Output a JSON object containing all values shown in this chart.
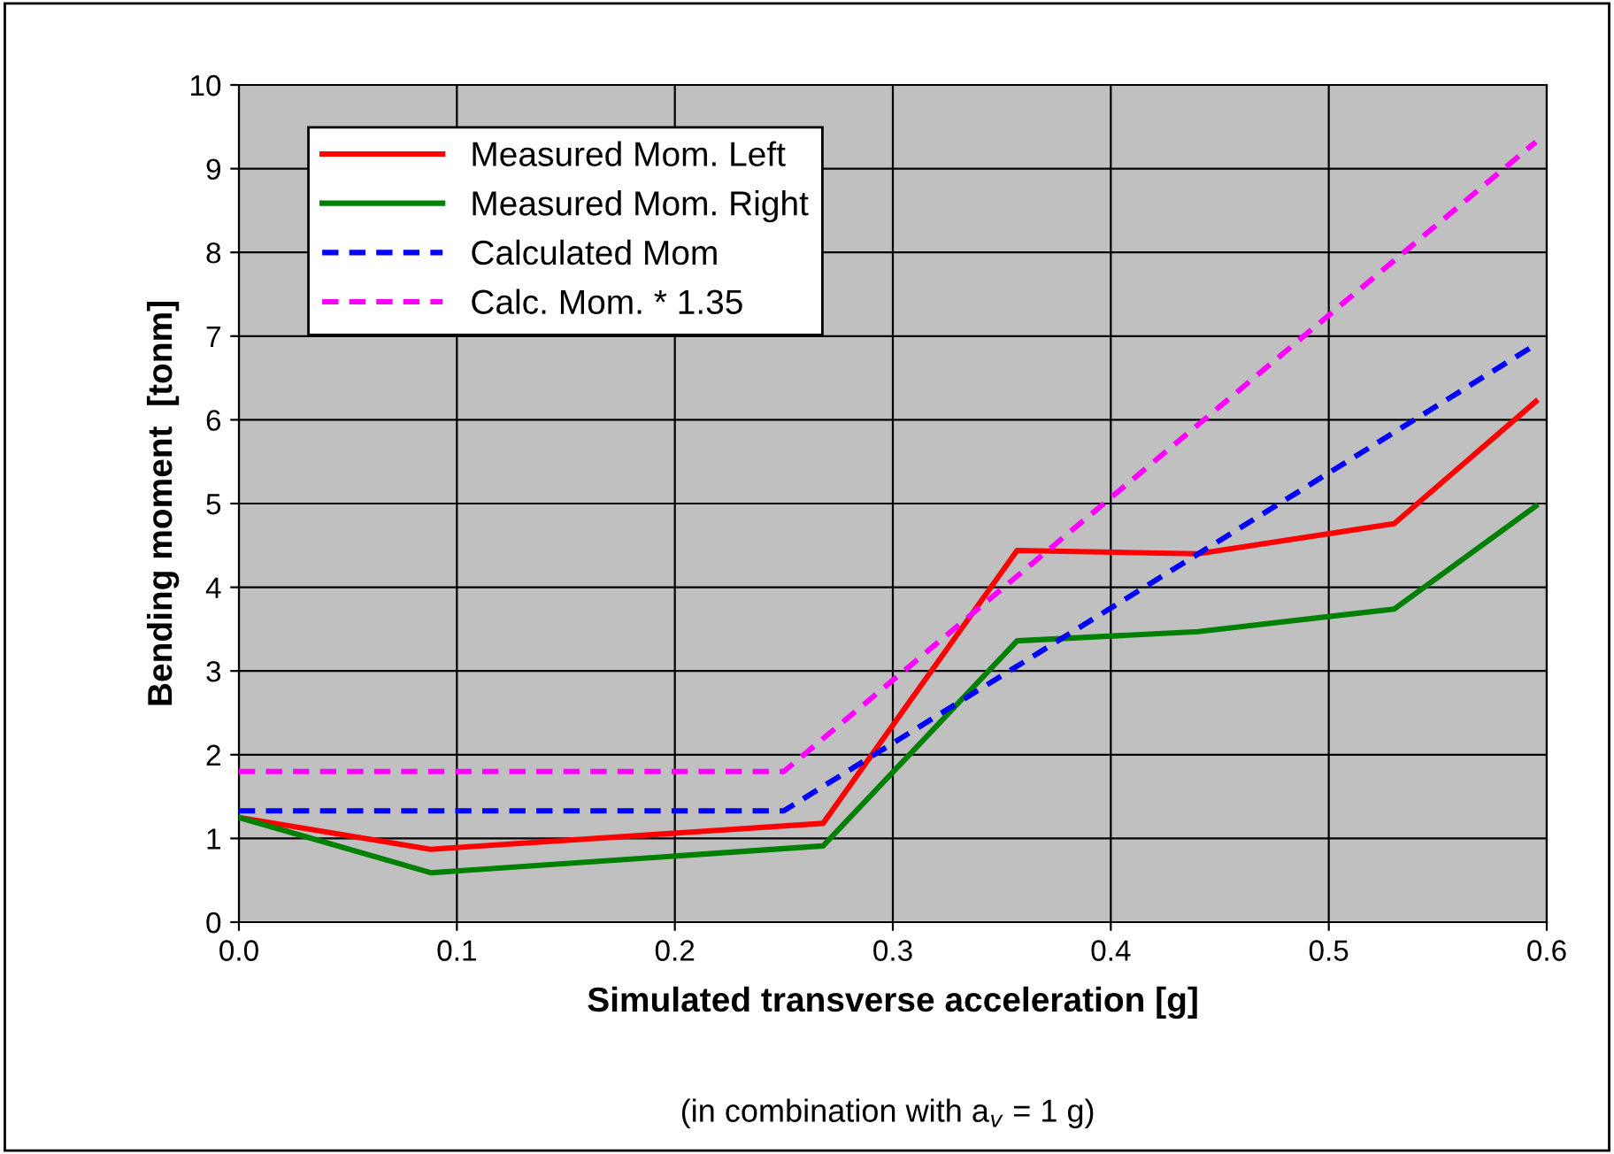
{
  "chart_data": {
    "type": "line",
    "xlabel": "Simulated transverse acceleration [g]",
    "ylabel": "Bending moment  [tonm]",
    "annotations": [
      "(in combination with a$_{v}$ = 1 g)"
    ],
    "xlim": [
      0,
      0.6
    ],
    "ylim": [
      0,
      10
    ],
    "xticks": [
      {
        "value": 0,
        "label": "0.0"
      },
      0.1,
      0.2,
      0.3,
      0.4,
      0.5,
      0.6
    ],
    "yticks": [
      0,
      1,
      2,
      3,
      4,
      5,
      6,
      7,
      8,
      9,
      10
    ],
    "grid": true,
    "legend": "top left",
    "marker": "none",
    "series": [
      {
        "name": "Measured Mom. Left",
        "color": "#ff0000",
        "line_style": "solid",
        "x": [
          0,
          0.088,
          0.268,
          0.357,
          0.44,
          0.53,
          0.595
        ],
        "values": [
          1.25,
          0.87,
          1.18,
          4.44,
          4.4,
          4.76,
          6.22
        ]
      },
      {
        "name": "Measured Mom. Right",
        "color": "#008000",
        "line_style": "solid",
        "x": [
          0,
          0.088,
          0.268,
          0.357,
          0.44,
          0.53,
          0.595
        ],
        "values": [
          1.25,
          0.59,
          0.91,
          3.36,
          3.47,
          3.74,
          4.97
        ]
      },
      {
        "name": "Calculated Mom",
        "color": "#0000ff",
        "line_style": "dashed",
        "x": [
          0,
          0.25,
          0.595
        ],
        "values": [
          1.33,
          1.33,
          6.9
        ]
      },
      {
        "name": "Calc. Mom. * 1.35",
        "color": "#ff00ff",
        "line_style": "dashed",
        "x": [
          0,
          0.25,
          0.595
        ],
        "values": [
          1.8,
          1.8,
          9.32
        ]
      }
    ]
  }
}
